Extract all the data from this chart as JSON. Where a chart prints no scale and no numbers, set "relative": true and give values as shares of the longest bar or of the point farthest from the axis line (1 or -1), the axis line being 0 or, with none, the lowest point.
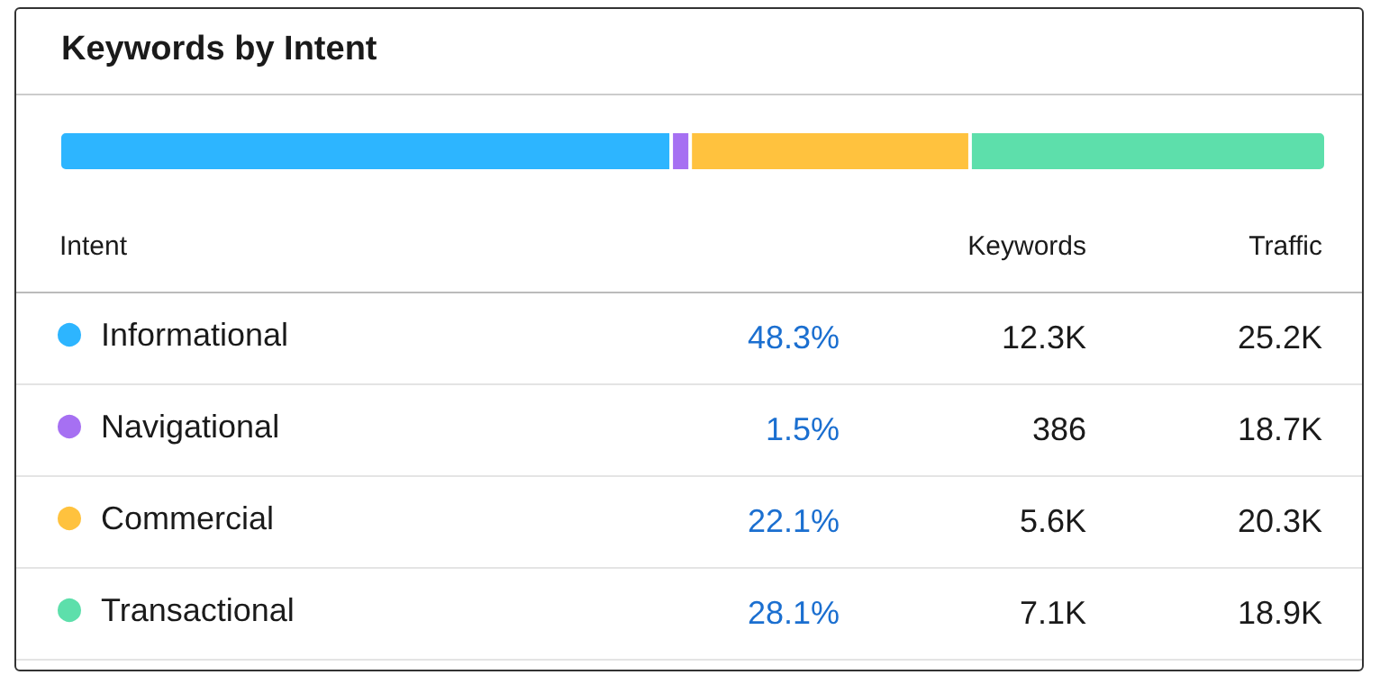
{
  "chart_data": [
    {
      "type": "bar",
      "orientation": "horizontal",
      "stacked": true,
      "relative": true,
      "title": "Keywords by Intent",
      "categories": [
        null
      ],
      "tick_labels": false,
      "legend": "bottom",
      "series": [
        {
          "name": "Informational",
          "color": "#2db5ff",
          "values": [
            0.483
          ]
        },
        {
          "name": "Navigational",
          "color": "#a670f2",
          "values": [
            0.015
          ]
        },
        {
          "name": "Commercial",
          "color": "#ffc23e",
          "values": [
            0.221
          ]
        },
        {
          "name": "Transactional",
          "color": "#5ddfab",
          "values": [
            0.281
          ]
        }
      ]
    },
    {
      "type": "other",
      "annotations": [
        "Intent",
        "Keywords",
        "Traffic",
        "48.3%",
        "12.3K",
        "25.2K",
        "1.5%",
        "386",
        "18.7K",
        "22.1%",
        "5.6K",
        "20.3K",
        "28.1%",
        "7.1K",
        "18.9K"
      ]
    }
  ]
}
